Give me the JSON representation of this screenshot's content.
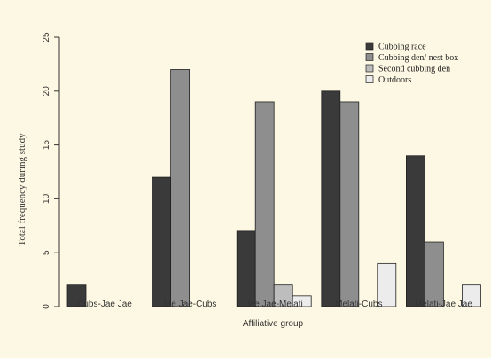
{
  "chart_data": {
    "type": "bar",
    "categories": [
      "Cubs-Jae Jae",
      "Jae Jae-Cubs",
      "Jae Jae-Melati",
      "Melati-Cubs",
      "Melati-Jae Jae"
    ],
    "series": [
      {
        "name": "Cubbing race",
        "values": [
          2,
          12,
          7,
          20,
          14
        ],
        "color": "#3a3a3a"
      },
      {
        "name": "Cubbing den/ nest box",
        "values": [
          0,
          22,
          19,
          19,
          6
        ],
        "color": "#8e8e8e"
      },
      {
        "name": "Second cubbing den",
        "values": [
          0,
          0,
          2,
          0,
          0
        ],
        "color": "#bdbdbd"
      },
      {
        "name": "Outdoors",
        "values": [
          0,
          0,
          1,
          4,
          2
        ],
        "color": "#ececec"
      }
    ],
    "xlabel": "Affiliative group",
    "ylabel": "Total frequency during study",
    "ylim": [
      0,
      25
    ],
    "yticks": [
      0,
      5,
      10,
      15,
      20,
      25
    ],
    "legend": "top-right",
    "grid": false
  }
}
